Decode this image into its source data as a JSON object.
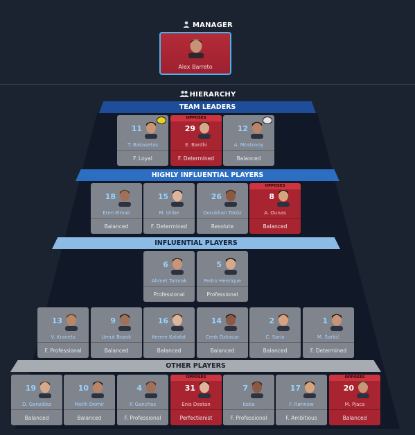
{
  "manager_section": {
    "title": "MANAGER",
    "name": "Alex Barreto"
  },
  "hierarchy_section": {
    "title": "HIERARCHY"
  },
  "tiers": {
    "team_leaders": "TEAM LEADERS",
    "highly_influential": "HIGHLY INFLUENTIAL PLAYERS",
    "influential": "INFLUENTIAL PLAYERS",
    "other": "OTHER PLAYERS"
  },
  "opposes_label": "OPPOSES",
  "colors": {
    "background": "#1b2230",
    "team_leaders_band": "#1e4e9a",
    "highly_band": "#2b6ec2",
    "influential_band": "#8cbbe6",
    "other_band": "#a7abb2",
    "card_grey": "#7f848d",
    "card_opposes": "#a92431",
    "number_blue": "#9ad3ff"
  },
  "players": [
    {
      "num": "11",
      "name": "T. Bakasetas",
      "personality": "F. Loyal",
      "opposes": false,
      "badge": "yellow-captain-icon"
    },
    {
      "num": "29",
      "name": "E. Bardhi",
      "personality": "F. Determined",
      "opposes": true
    },
    {
      "num": "12",
      "name": "A. Mostovoy",
      "personality": "Balanced",
      "opposes": false,
      "badge": "white-captain-icon"
    },
    {
      "num": "18",
      "name": "Eren Elmalı",
      "personality": "Balanced",
      "opposes": false
    },
    {
      "num": "15",
      "name": "M. Uribe",
      "personality": "F. Determined",
      "opposes": false
    },
    {
      "num": "26",
      "name": "Dorukhan Toköz",
      "personality": "Resolute",
      "opposes": false
    },
    {
      "num": "8",
      "name": "A. Ounas",
      "personality": "Balanced",
      "opposes": true
    },
    {
      "num": "6",
      "name": "Ahmet Tamrak",
      "personality": "Professional",
      "opposes": false
    },
    {
      "num": "5",
      "name": "Pedro Henrique",
      "personality": "Professional",
      "opposes": false
    },
    {
      "num": "13",
      "name": "V. Kravets",
      "personality": "F. Professional",
      "opposes": false
    },
    {
      "num": "9",
      "name": "Umut Bozok",
      "personality": "Balanced",
      "opposes": false
    },
    {
      "num": "16",
      "name": "Kerem Kalafat",
      "personality": "Balanced",
      "opposes": false
    },
    {
      "num": "14",
      "name": "Cenk Özkacar",
      "personality": "Balanced",
      "opposes": false
    },
    {
      "num": "2",
      "name": "C. Soria",
      "personality": "Balanced",
      "opposes": false
    },
    {
      "num": "1",
      "name": "M. Šarkić",
      "personality": "F. Determined",
      "opposes": false
    },
    {
      "num": "19",
      "name": "D. González",
      "personality": "Balanced",
      "opposes": false
    },
    {
      "num": "10",
      "name": "Melih Demir",
      "personality": "Balanced",
      "opposes": false
    },
    {
      "num": "4",
      "name": "P. Ganchas",
      "personality": "F. Professional",
      "opposes": false
    },
    {
      "num": "31",
      "name": "Enis Destan",
      "personality": "Perfectionist",
      "opposes": true
    },
    {
      "num": "7",
      "name": "Koba",
      "personality": "F. Professional",
      "opposes": false
    },
    {
      "num": "17",
      "name": "F. Rønnow",
      "personality": "F. Ambitious",
      "opposes": false
    },
    {
      "num": "20",
      "name": "M. Pjaca",
      "personality": "Balanced",
      "opposes": true
    }
  ]
}
